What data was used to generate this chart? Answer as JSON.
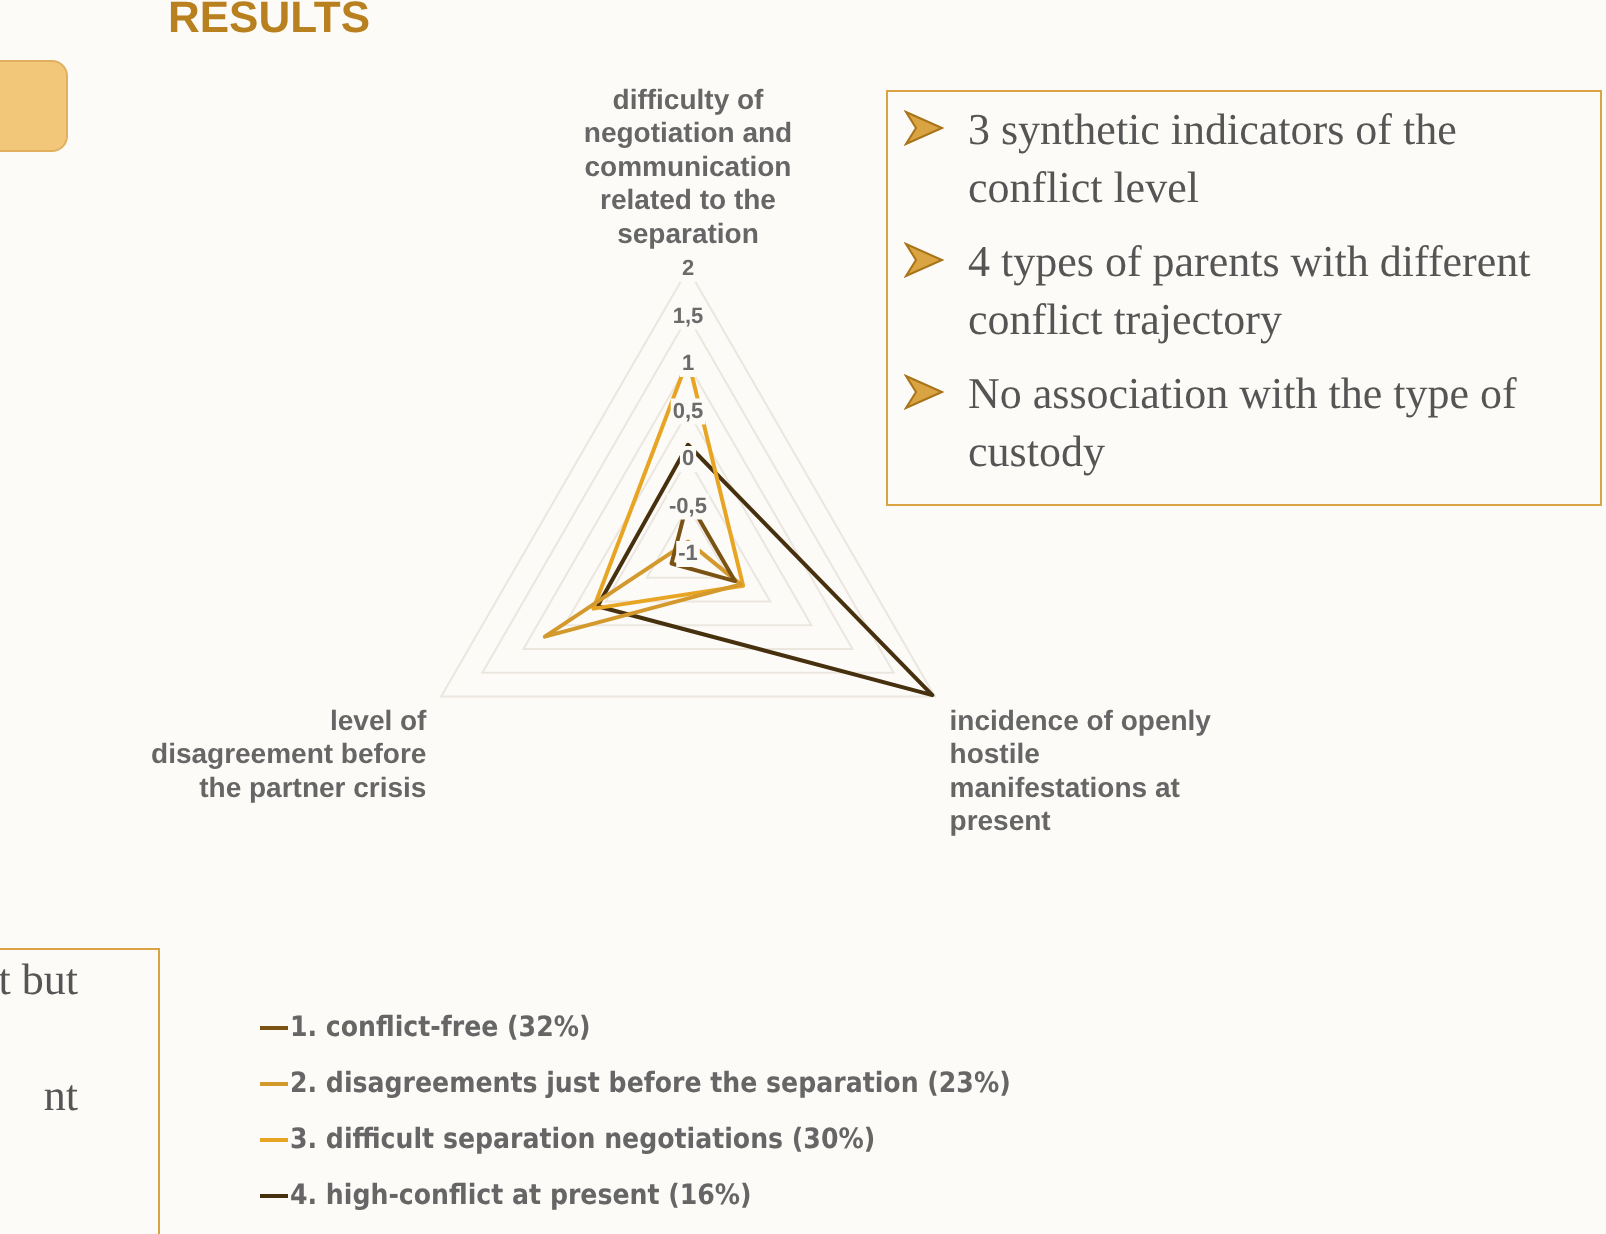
{
  "chart_data": {
    "type": "radar",
    "title": "RESULTS",
    "categories": [
      "difficulty of negotiation and communication related to the separation",
      "incidence of openly hostile manifestations at present",
      "level of disagreement before the partner crisis"
    ],
    "series": [
      {
        "name": "1. conflict-free (32%)",
        "color": "#7a5214",
        "values": [
          -0.43,
          -0.43,
          -0.8
        ]
      },
      {
        "name": "2. disagreements just before the separation (23%)",
        "color": "#d4992c",
        "values": [
          -0.87,
          -0.36,
          0.74
        ]
      },
      {
        "name": "3. difficult separation negotiations (30%)",
        "color": "#e8a524",
        "values": [
          1.05,
          -0.33,
          0.15
        ]
      },
      {
        "name": "4. high-conflict at present (16%)",
        "color": "#47300e",
        "values": [
          0.15,
          1.97,
          0.1
        ]
      }
    ],
    "ylim": [
      -1,
      2
    ],
    "yticks": [
      -1,
      {
        "value": -0.5,
        "label": "-0,5"
      },
      0,
      {
        "value": 0.5,
        "label": "0,5"
      },
      1,
      {
        "value": 1.5,
        "label": "1,5"
      },
      2
    ],
    "grid": true,
    "legend": "bottom",
    "annotations": [
      "3 synthetic indicators of the conflict level",
      "4 types of parents with different conflict trajectory",
      "No association with the type of custody",
      "t but",
      "nt"
    ]
  }
}
